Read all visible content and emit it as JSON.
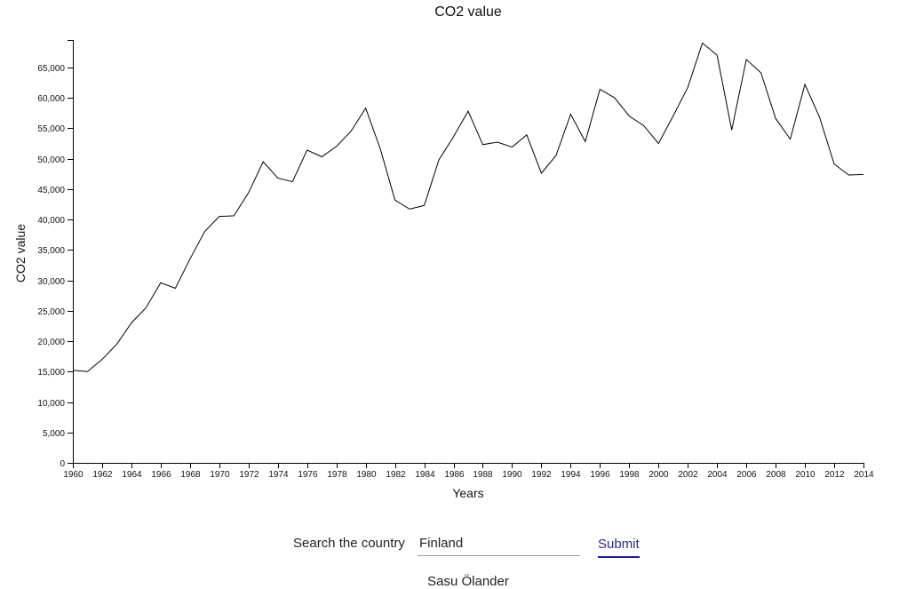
{
  "chart_data": {
    "type": "line",
    "title": "CO2 value",
    "xlabel": "Years",
    "ylabel": "CO2 value",
    "xlim": [
      1960,
      2014
    ],
    "ylim": [
      0,
      69500
    ],
    "grid": false,
    "x_ticks": [
      1960,
      1962,
      1964,
      1966,
      1968,
      1970,
      1972,
      1974,
      1976,
      1978,
      1980,
      1982,
      1984,
      1986,
      1988,
      1990,
      1992,
      1994,
      1996,
      1998,
      2000,
      2002,
      2004,
      2006,
      2008,
      2010,
      2012,
      2014
    ],
    "y_ticks": [
      0,
      5000,
      10000,
      15000,
      20000,
      25000,
      30000,
      35000,
      40000,
      45000,
      50000,
      55000,
      60000,
      65000
    ],
    "y_tick_labels": [
      "0",
      "5,000",
      "10,000",
      "15,000",
      "20,000",
      "25,000",
      "30,000",
      "35,000",
      "40,000",
      "45,000",
      "50,000",
      "55,000",
      "60,000",
      "65,000"
    ],
    "x": [
      1960,
      1961,
      1962,
      1963,
      1964,
      1965,
      1966,
      1967,
      1968,
      1969,
      1970,
      1971,
      1972,
      1973,
      1974,
      1975,
      1976,
      1977,
      1978,
      1979,
      1980,
      1981,
      1982,
      1983,
      1984,
      1985,
      1986,
      1987,
      1988,
      1989,
      1990,
      1991,
      1992,
      1993,
      1994,
      1995,
      1996,
      1997,
      1998,
      1999,
      2000,
      2001,
      2002,
      2003,
      2004,
      2005,
      2006,
      2007,
      2008,
      2009,
      2010,
      2011,
      2012,
      2013,
      2014
    ],
    "series": [
      {
        "values": [
          15200,
          15000,
          17000,
          19500,
          23000,
          25500,
          29600,
          28700,
          33500,
          38000,
          40500,
          40600,
          44400,
          49500,
          46800,
          46200,
          51400,
          50300,
          52000,
          54500,
          58300,
          51600,
          43200,
          41700,
          42300,
          49800,
          53600,
          57800,
          52300,
          52700,
          51900,
          53900,
          47600,
          50500,
          57300,
          52800,
          61400,
          60000,
          57000,
          55400,
          52500,
          57000,
          61700,
          69000,
          67000,
          54700,
          66300,
          64100,
          56600,
          53200,
          62200,
          56800,
          49100,
          47300,
          47400
        ]
      }
    ]
  },
  "search": {
    "label": "Search the country",
    "value": "Finland",
    "submit_label": "Submit"
  },
  "footer": {
    "author": "Sasu Ölander"
  }
}
